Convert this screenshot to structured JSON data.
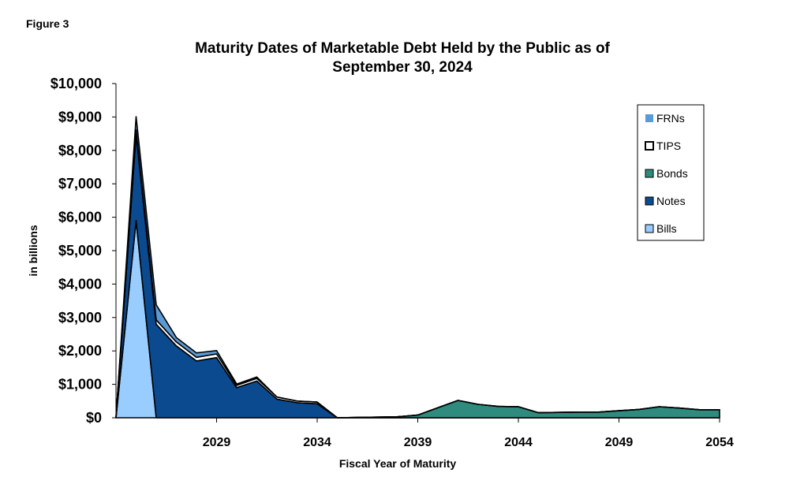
{
  "figure_label": "Figure 3",
  "chart_data": {
    "type": "area",
    "stacked": true,
    "title": "Maturity Dates of Marketable Debt Held by the Public as of September 30, 2024",
    "title_lines": [
      "Maturity Dates of Marketable Debt Held by the Public as of",
      "September 30, 2024"
    ],
    "xlabel": "Fiscal Year of Maturity",
    "ylabel": "in billions",
    "x": [
      2024,
      2025,
      2026,
      2027,
      2028,
      2029,
      2030,
      2031,
      2032,
      2033,
      2034,
      2035,
      2036,
      2037,
      2038,
      2039,
      2040,
      2041,
      2042,
      2043,
      2044,
      2045,
      2046,
      2047,
      2048,
      2049,
      2050,
      2051,
      2052,
      2053,
      2054
    ],
    "xlim": [
      2024,
      2054
    ],
    "x_ticks": [
      "2029",
      "2034",
      "2039",
      "2044",
      "2049",
      "2054"
    ],
    "ylim": [
      0,
      10000
    ],
    "y_ticks": [
      "$0",
      "$1,000",
      "$2,000",
      "$3,000",
      "$4,000",
      "$5,000",
      "$6,000",
      "$7,000",
      "$8,000",
      "$9,000",
      "$10,000"
    ],
    "grid": false,
    "legend_position": "right",
    "series": [
      {
        "name": "Bills",
        "color": "#99ccff",
        "values": [
          0,
          5900,
          0,
          0,
          0,
          0,
          0,
          0,
          0,
          0,
          0,
          0,
          0,
          0,
          0,
          0,
          0,
          0,
          0,
          0,
          0,
          0,
          0,
          0,
          0,
          0,
          0,
          0,
          0,
          0,
          0
        ]
      },
      {
        "name": "Notes",
        "color": "#0b4a8f",
        "values": [
          0,
          2600,
          2800,
          2150,
          1700,
          1800,
          900,
          1100,
          560,
          450,
          420,
          0,
          0,
          0,
          0,
          0,
          0,
          0,
          0,
          0,
          0,
          0,
          0,
          0,
          0,
          0,
          0,
          0,
          0,
          0,
          0
        ]
      },
      {
        "name": "Bonds",
        "color": "#2e8b7e",
        "values": [
          0,
          0,
          0,
          0,
          0,
          0,
          0,
          0,
          0,
          0,
          0,
          0,
          10,
          20,
          30,
          80,
          300,
          520,
          400,
          340,
          330,
          150,
          160,
          170,
          170,
          210,
          250,
          330,
          290,
          240,
          240
        ]
      },
      {
        "name": "TIPS",
        "color": "#ffffff",
        "values": [
          0,
          110,
          130,
          120,
          110,
          110,
          70,
          80,
          60,
          50,
          50,
          0,
          0,
          0,
          0,
          0,
          0,
          0,
          0,
          0,
          0,
          0,
          0,
          0,
          0,
          0,
          0,
          0,
          0,
          0,
          0
        ]
      },
      {
        "name": "FRNs",
        "color": "#5b9bd5",
        "values": [
          0,
          400,
          450,
          130,
          130,
          100,
          40,
          40,
          0,
          0,
          0,
          0,
          0,
          0,
          0,
          0,
          0,
          0,
          0,
          0,
          0,
          0,
          0,
          0,
          0,
          0,
          0,
          0,
          0,
          0,
          0
        ]
      }
    ],
    "legend_order": [
      "FRNs",
      "TIPS",
      "Bonds",
      "Notes",
      "Bills"
    ]
  }
}
